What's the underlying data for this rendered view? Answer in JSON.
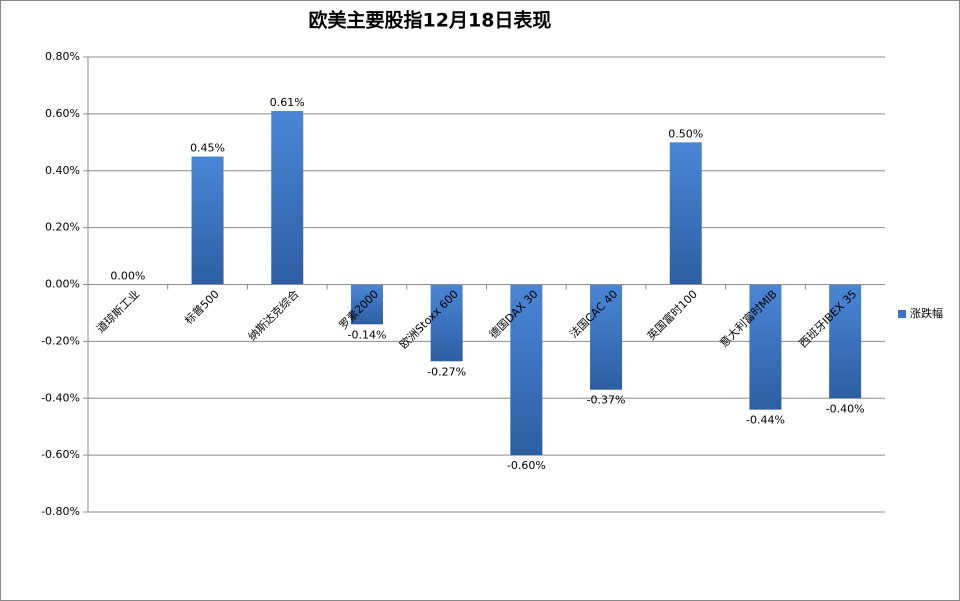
{
  "chart_data": {
    "type": "bar",
    "title": "欧美主要股指12月18日表现",
    "categories": [
      "道琼斯工业",
      "标普500",
      "纳斯达克综合",
      "罗素2000",
      "欧洲Stoxx 600",
      "德国DAX 30",
      "法国CAC 40",
      "英国富时100",
      "意大利富时MIB",
      "西班牙IBEX 35"
    ],
    "series": [
      {
        "name": "涨跌幅",
        "color": "#3b73c2",
        "values": [
          0,
          0.45,
          0.61,
          -0.14,
          -0.27,
          -0.6,
          -0.37,
          0.5,
          -0.44,
          -0.4
        ],
        "value_labels": [
          "0.00%",
          "0.45%",
          "0.61%",
          "-0.14%",
          "-0.27%",
          "-0.60%",
          "-0.37%",
          "0.50%",
          "-0.44%",
          "-0.40%"
        ]
      }
    ],
    "ylim": [
      -0.8,
      0.8
    ],
    "yticks": [
      {
        "value": -0.8,
        "label": "-0.80%"
      },
      {
        "value": -0.6,
        "label": "-0.60%"
      },
      {
        "value": -0.4,
        "label": "-0.40%"
      },
      {
        "value": -0.2,
        "label": "-0.20%"
      },
      {
        "value": 0,
        "label": "0.00%"
      },
      {
        "value": 0.2,
        "label": "0.20%"
      },
      {
        "value": 0.4,
        "label": "0.40%"
      },
      {
        "value": 0.6,
        "label": "0.60%"
      },
      {
        "value": 0.8,
        "label": "0.80%"
      }
    ],
    "grid": true,
    "legend": "right"
  }
}
